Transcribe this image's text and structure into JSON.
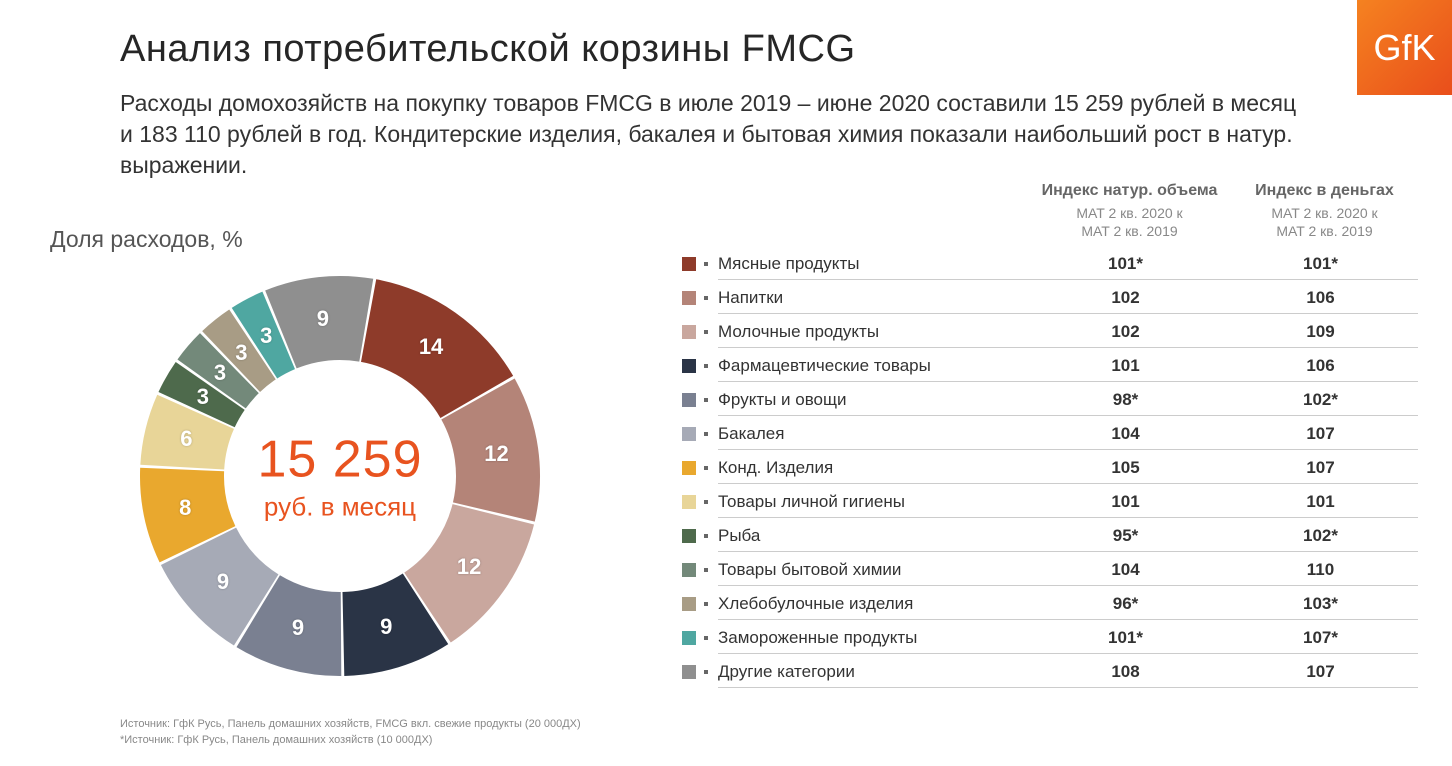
{
  "logo_text": "GfK",
  "title": "Анализ потребительской корзины FMCG",
  "subtitle": "Расходы домохозяйств на покупку товаров FMCG в июле 2019 – июне 2020 составили 15 259 рублей в месяц и 183 110 рублей в год. Кондитерские изделия, бакалея и бытовая химия показали наибольший рост в натур. выражении.",
  "chart_title": "Доля расходов, %",
  "donut": {
    "type": "donut",
    "center_value": "15 259",
    "center_unit": "руб. в месяц",
    "center_color": "#e8531f",
    "inner_radius_ratio": 0.58,
    "background_color": "#ffffff",
    "label_fontsize": 22,
    "label_color": "#ffffff",
    "segments": [
      {
        "label": "Мясные продукты",
        "value": 14,
        "color": "#8e3b2a",
        "show_label": true
      },
      {
        "label": "Напитки",
        "value": 12,
        "color": "#b48478",
        "show_label": true
      },
      {
        "label": "Молочные продукты",
        "value": 12,
        "color": "#c9a79e",
        "show_label": true
      },
      {
        "label": "Фармацевтические товары",
        "value": 9,
        "color": "#2a3446",
        "show_label": true
      },
      {
        "label": "Фрукты и овощи",
        "value": 9,
        "color": "#7a8091",
        "show_label": true
      },
      {
        "label": "Бакалея",
        "value": 9,
        "color": "#a6aab6",
        "show_label": true
      },
      {
        "label": "Конд. Изделия",
        "value": 8,
        "color": "#e9a82e",
        "show_label": true
      },
      {
        "label": "Товары личной гигиены",
        "value": 6,
        "color": "#e8d598",
        "show_label": true
      },
      {
        "label": "Рыба",
        "value": 3,
        "color": "#4e6a4c",
        "show_label": true
      },
      {
        "label": "Товары бытовой химии",
        "value": 3,
        "color": "#73897a",
        "show_label": true
      },
      {
        "label": "Хлебобулочные изделия",
        "value": 3,
        "color": "#a89c85",
        "show_label": true
      },
      {
        "label": "Замороженные продукты",
        "value": 3,
        "color": "#4fa7a1",
        "show_label": true
      },
      {
        "label": "Другие категории",
        "value": 9,
        "color": "#8f8f8f",
        "show_label": true
      }
    ]
  },
  "table": {
    "header_col1_title": "Индекс натур. объема",
    "header_col2_title": "Индекс в деньгах",
    "header_sub1": "MAT 2 кв. 2020 к",
    "header_sub2": "MAT 2 кв. 2019",
    "rows": [
      {
        "label": "Мясные продукты",
        "color": "#8e3b2a",
        "vol": "101*",
        "money": "101*"
      },
      {
        "label": "Напитки",
        "color": "#b48478",
        "vol": "102",
        "money": "106"
      },
      {
        "label": "Молочные продукты",
        "color": "#c9a79e",
        "vol": "102",
        "money": "109"
      },
      {
        "label": "Фармацевтические товары",
        "color": "#2a3446",
        "vol": "101",
        "money": "106"
      },
      {
        "label": "Фрукты и овощи",
        "color": "#7a8091",
        "vol": "98*",
        "money": "102*"
      },
      {
        "label": "Бакалея",
        "color": "#a6aab6",
        "vol": "104",
        "money": "107"
      },
      {
        "label": "Конд. Изделия",
        "color": "#e9a82e",
        "vol": "105",
        "money": "107"
      },
      {
        "label": "Товары личной гигиены",
        "color": "#e8d598",
        "vol": "101",
        "money": "101"
      },
      {
        "label": "Рыба",
        "color": "#4e6a4c",
        "vol": "95*",
        "money": "102*"
      },
      {
        "label": "Товары бытовой химии",
        "color": "#73897a",
        "vol": "104",
        "money": "110"
      },
      {
        "label": "Хлебобулочные изделия",
        "color": "#a89c85",
        "vol": "96*",
        "money": "103*"
      },
      {
        "label": "Замороженные продукты",
        "color": "#4fa7a1",
        "vol": "101*",
        "money": "107*"
      },
      {
        "label": "Другие категории",
        "color": "#8f8f8f",
        "vol": "108",
        "money": "107"
      }
    ]
  },
  "footnotes": [
    "Источник: ГфК Русь, Панель домашних хозяйств, FMCG вкл. свежие продукты (20 000ДХ)",
    "*Источник: ГфК Русь, Панель домашних хозяйств (10 000ДХ)"
  ]
}
